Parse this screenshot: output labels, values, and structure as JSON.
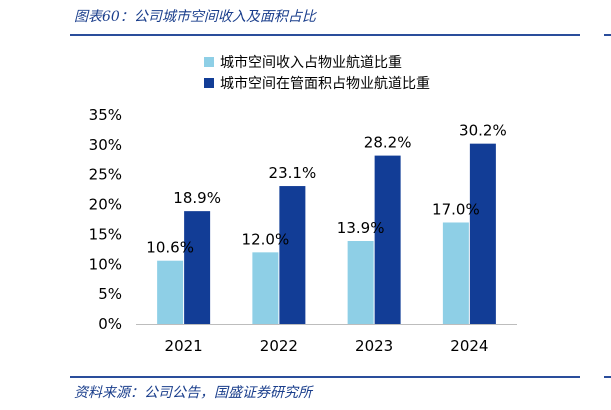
{
  "header": {
    "title": "图表60：公司城市空间收入及面积占比"
  },
  "footer": {
    "source": "资料来源：公司公告，国盛证券研究所"
  },
  "colors": {
    "series1": "#8ecfe6",
    "series2": "#123d96",
    "rule": "#2a4d9b"
  },
  "chart_data": {
    "type": "bar",
    "categories": [
      "2021",
      "2022",
      "2023",
      "2024"
    ],
    "series": [
      {
        "name": "城市空间收入占物业航道比重",
        "values": [
          10.6,
          12.0,
          13.9,
          17.0
        ],
        "labels": [
          "10.6%",
          "12.0%",
          "13.9%",
          "17.0%"
        ]
      },
      {
        "name": "城市空间在管面积占物业航道比重",
        "values": [
          18.9,
          23.1,
          28.2,
          30.2
        ],
        "labels": [
          "18.9%",
          "23.1%",
          "28.2%",
          "30.2%"
        ]
      }
    ],
    "yticks": [
      "0%",
      "5%",
      "10%",
      "15%",
      "20%",
      "25%",
      "30%",
      "35%"
    ],
    "ylim": [
      0,
      35
    ],
    "legend": "top-center",
    "grid": false
  }
}
